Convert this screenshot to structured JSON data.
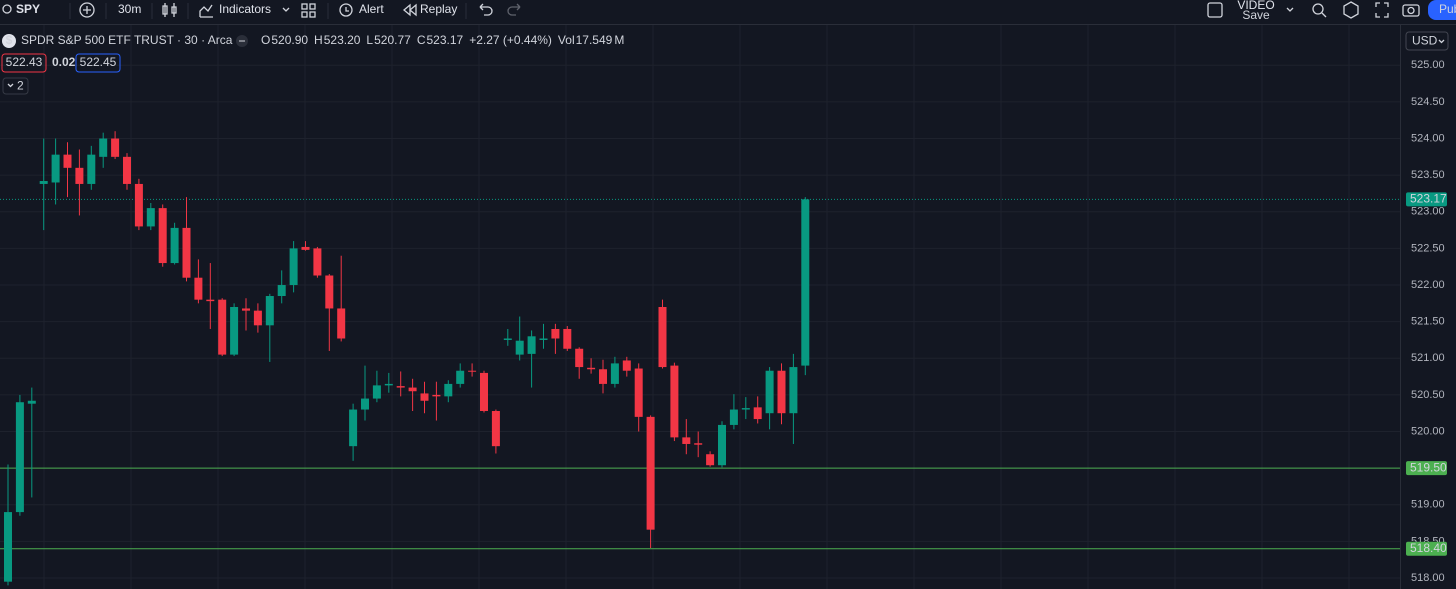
{
  "toolbar": {
    "symbol": "SPY",
    "interval": "30m",
    "indicators": "Indicators",
    "alert": "Alert",
    "replay": "Replay",
    "video": "VIDEO",
    "save": "Save",
    "publish": "Pub"
  },
  "trade": {
    "sell": "522.43",
    "spread": "0.02",
    "buy": "522.45"
  },
  "indicator_count": "2",
  "currency": "USD",
  "chart_data": {
    "type": "candlestick",
    "title": "SPDR S&P 500 ETF TRUST · 30 · Arca",
    "legend": [
      {
        "label": "O",
        "value": "520.90"
      },
      {
        "label": "H",
        "value": "523.20"
      },
      {
        "label": "L",
        "value": "520.77"
      },
      {
        "label": "C",
        "value": "523.17"
      }
    ],
    "change": "+2.27 (+0.44%)",
    "volume": {
      "label": "Vol",
      "value": "17.549",
      "unit": "M"
    },
    "up_color": "#089981",
    "down_color": "#f23645",
    "open": [
      517.95,
      518.9,
      520.38,
      523.38,
      523.4,
      523.78,
      523.6,
      523.38,
      523.75,
      524.0,
      523.75,
      523.38,
      522.8,
      523.05,
      522.3,
      522.78,
      522.1,
      521.8,
      521.8,
      521.05,
      521.68,
      521.65,
      521.45,
      521.85,
      522.0,
      522.52,
      522.5,
      522.13,
      521.68,
      519.8,
      520.3,
      520.45,
      520.63,
      520.62,
      520.6,
      520.52,
      520.5,
      520.48,
      520.65,
      520.83,
      520.8,
      520.28,
      521.25,
      521.05,
      521.06,
      521.25,
      521.4,
      521.4,
      521.13,
      520.87,
      520.85,
      520.65,
      520.97,
      520.86,
      520.2,
      521.7,
      520.9,
      519.92,
      519.84,
      519.69,
      519.54,
      520.09,
      520.3,
      520.33,
      520.25,
      520.83,
      520.25,
      520.9
    ],
    "high": [
      519.55,
      520.5,
      520.6,
      524.0,
      524.0,
      523.95,
      523.85,
      523.9,
      524.08,
      524.1,
      523.8,
      523.45,
      523.12,
      523.1,
      522.85,
      523.2,
      522.35,
      522.3,
      521.82,
      521.75,
      521.82,
      521.75,
      521.88,
      522.2,
      522.6,
      522.6,
      522.52,
      522.15,
      522.4,
      520.38,
      520.9,
      520.83,
      520.8,
      520.82,
      520.72,
      520.68,
      520.68,
      520.7,
      520.93,
      520.93,
      520.83,
      520.3,
      521.4,
      521.57,
      521.38,
      521.47,
      521.47,
      521.44,
      521.15,
      521.0,
      520.98,
      521.02,
      521.02,
      520.93,
      520.22,
      521.8,
      520.94,
      520.17,
      520.0,
      519.73,
      520.14,
      520.51,
      520.47,
      520.48,
      520.88,
      520.93,
      521.06,
      523.2
    ],
    "low": [
      517.9,
      518.85,
      519.1,
      522.75,
      523.1,
      523.2,
      522.95,
      523.3,
      523.6,
      523.72,
      523.3,
      522.75,
      522.75,
      522.25,
      522.28,
      522.05,
      521.75,
      521.4,
      521.03,
      521.03,
      521.38,
      521.35,
      520.95,
      521.75,
      521.9,
      522.47,
      522.1,
      521.1,
      521.23,
      519.6,
      520.15,
      520.4,
      520.53,
      520.48,
      520.28,
      520.25,
      520.15,
      520.4,
      520.6,
      520.75,
      520.26,
      519.7,
      521.17,
      520.97,
      520.6,
      521.13,
      521.06,
      521.1,
      520.72,
      520.79,
      520.52,
      520.6,
      520.75,
      520.0,
      518.41,
      520.86,
      519.87,
      519.69,
      519.65,
      519.52,
      519.51,
      520.03,
      520.17,
      520.11,
      520.03,
      520.1,
      519.83,
      520.77
    ],
    "close": [
      518.9,
      520.4,
      520.42,
      523.42,
      523.78,
      523.6,
      523.38,
      523.78,
      524.0,
      523.75,
      523.38,
      522.8,
      523.05,
      522.3,
      522.78,
      522.1,
      521.8,
      521.78,
      521.05,
      521.7,
      521.65,
      521.45,
      521.85,
      522.0,
      522.5,
      522.48,
      522.13,
      521.68,
      521.27,
      520.3,
      520.45,
      520.63,
      520.65,
      520.6,
      520.55,
      520.42,
      520.48,
      520.65,
      520.83,
      520.82,
      520.28,
      519.8,
      521.27,
      521.24,
      521.3,
      521.27,
      521.27,
      521.13,
      520.88,
      520.85,
      520.65,
      520.93,
      520.83,
      520.2,
      518.66,
      520.88,
      519.92,
      519.83,
      519.82,
      519.54,
      520.09,
      520.3,
      520.32,
      520.17,
      520.83,
      520.25,
      520.88,
      523.17
    ],
    "ylim": [
      517.85,
      525.55
    ],
    "yticks": [
      {
        "value": 518,
        "label": "518.00"
      },
      {
        "value": 518.5,
        "label": "518.50"
      },
      {
        "value": 519,
        "label": "519.00"
      },
      {
        "value": 519.5,
        "label": "519.50"
      },
      {
        "value": 520,
        "label": "520.00"
      },
      {
        "value": 520.5,
        "label": "520.50"
      },
      {
        "value": 521,
        "label": "521.00"
      },
      {
        "value": 521.5,
        "label": "521.50"
      },
      {
        "value": 522,
        "label": "522.00"
      },
      {
        "value": 522.5,
        "label": "522.50"
      },
      {
        "value": 523,
        "label": "523.00"
      },
      {
        "value": 523.5,
        "label": "523.50"
      },
      {
        "value": 524,
        "label": "524.00"
      },
      {
        "value": 524.5,
        "label": "524.50"
      },
      {
        "value": 525,
        "label": "525.00"
      }
    ],
    "grid": true,
    "hlines": [
      {
        "value": 519.5,
        "label": "519.50",
        "color": "#4caf50"
      },
      {
        "value": 518.4,
        "label": "518.40",
        "color": "#4caf50"
      }
    ],
    "last_price": {
      "value": 523.17,
      "label": "523.17",
      "color": "#089981"
    }
  }
}
